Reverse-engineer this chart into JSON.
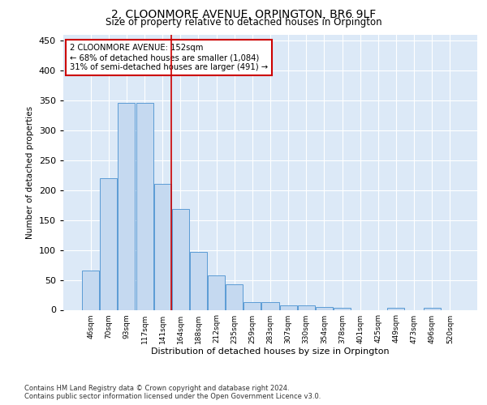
{
  "title": "2, CLOONMORE AVENUE, ORPINGTON, BR6 9LF",
  "subtitle": "Size of property relative to detached houses in Orpington",
  "xlabel": "Distribution of detached houses by size in Orpington",
  "ylabel": "Number of detached properties",
  "bar_color": "#c5d9f0",
  "bar_edge_color": "#5b9bd5",
  "background_color": "#dce9f7",
  "categories": [
    "46sqm",
    "70sqm",
    "93sqm",
    "117sqm",
    "141sqm",
    "164sqm",
    "188sqm",
    "212sqm",
    "235sqm",
    "259sqm",
    "283sqm",
    "307sqm",
    "330sqm",
    "354sqm",
    "378sqm",
    "401sqm",
    "425sqm",
    "449sqm",
    "473sqm",
    "496sqm",
    "520sqm"
  ],
  "values": [
    65,
    220,
    345,
    345,
    210,
    168,
    97,
    57,
    43,
    13,
    13,
    7,
    7,
    5,
    4,
    0,
    0,
    4,
    0,
    3,
    0
  ],
  "vline_x": 4.5,
  "vline_color": "#cc0000",
  "annotation_lines": [
    "2 CLOONMORE AVENUE: 152sqm",
    "← 68% of detached houses are smaller (1,084)",
    "31% of semi-detached houses are larger (491) →"
  ],
  "ylim": [
    0,
    460
  ],
  "yticks": [
    0,
    50,
    100,
    150,
    200,
    250,
    300,
    350,
    400,
    450
  ],
  "footer_line1": "Contains HM Land Registry data © Crown copyright and database right 2024.",
  "footer_line2": "Contains public sector information licensed under the Open Government Licence v3.0."
}
